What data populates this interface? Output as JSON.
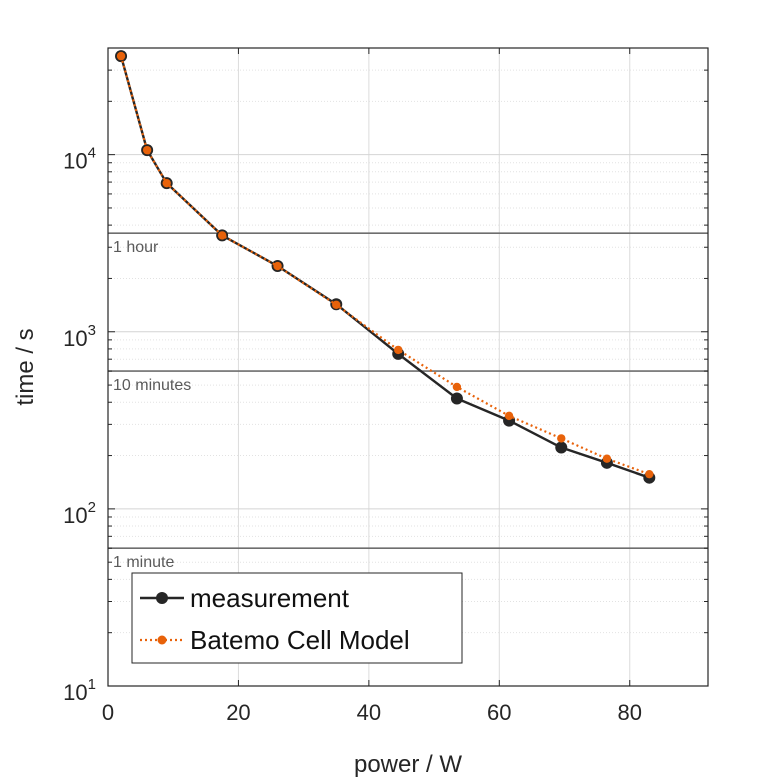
{
  "chart_data": {
    "type": "line",
    "title": "",
    "xlabel": "power / W",
    "ylabel": "time / s",
    "xlim": [
      0,
      92
    ],
    "ylim": [
      10,
      40000
    ],
    "yscale": "log",
    "grid": true,
    "legend_position": "bottom-left",
    "x_ticks": [
      "0",
      "20",
      "40",
      "60",
      "80"
    ],
    "x_tick_values": [
      0,
      20,
      40,
      60,
      80
    ],
    "y_ticks": [
      {
        "base": "10",
        "exp": "1",
        "value": 10
      },
      {
        "base": "10",
        "exp": "2",
        "value": 100
      },
      {
        "base": "10",
        "exp": "3",
        "value": 1000
      },
      {
        "base": "10",
        "exp": "4",
        "value": 10000
      }
    ],
    "reference_lines": [
      {
        "label": "1 hour",
        "value": 3600
      },
      {
        "label": "10 minutes",
        "value": 600
      },
      {
        "label": "1 minute",
        "value": 60
      }
    ],
    "series": [
      {
        "name": "measurement",
        "color": "#262626",
        "line_style": "solid",
        "marker": "circle",
        "x": [
          2,
          6,
          9,
          17.5,
          26,
          35,
          44.5,
          53.5,
          61.5,
          69.5,
          76.5,
          83
        ],
        "y": [
          36000,
          10600,
          6900,
          3500,
          2350,
          1430,
          750,
          420,
          315,
          222,
          182,
          150
        ]
      },
      {
        "name": "Batemo Cell Model",
        "color": "#e8620a",
        "line_style": "dotted",
        "marker": "dot",
        "x": [
          2,
          6,
          9,
          17.5,
          26,
          35,
          44.5,
          53.5,
          61.5,
          69.5,
          76.5,
          83
        ],
        "y": [
          36000,
          10600,
          6900,
          3500,
          2350,
          1420,
          790,
          488,
          335,
          250,
          192,
          157
        ]
      }
    ]
  }
}
